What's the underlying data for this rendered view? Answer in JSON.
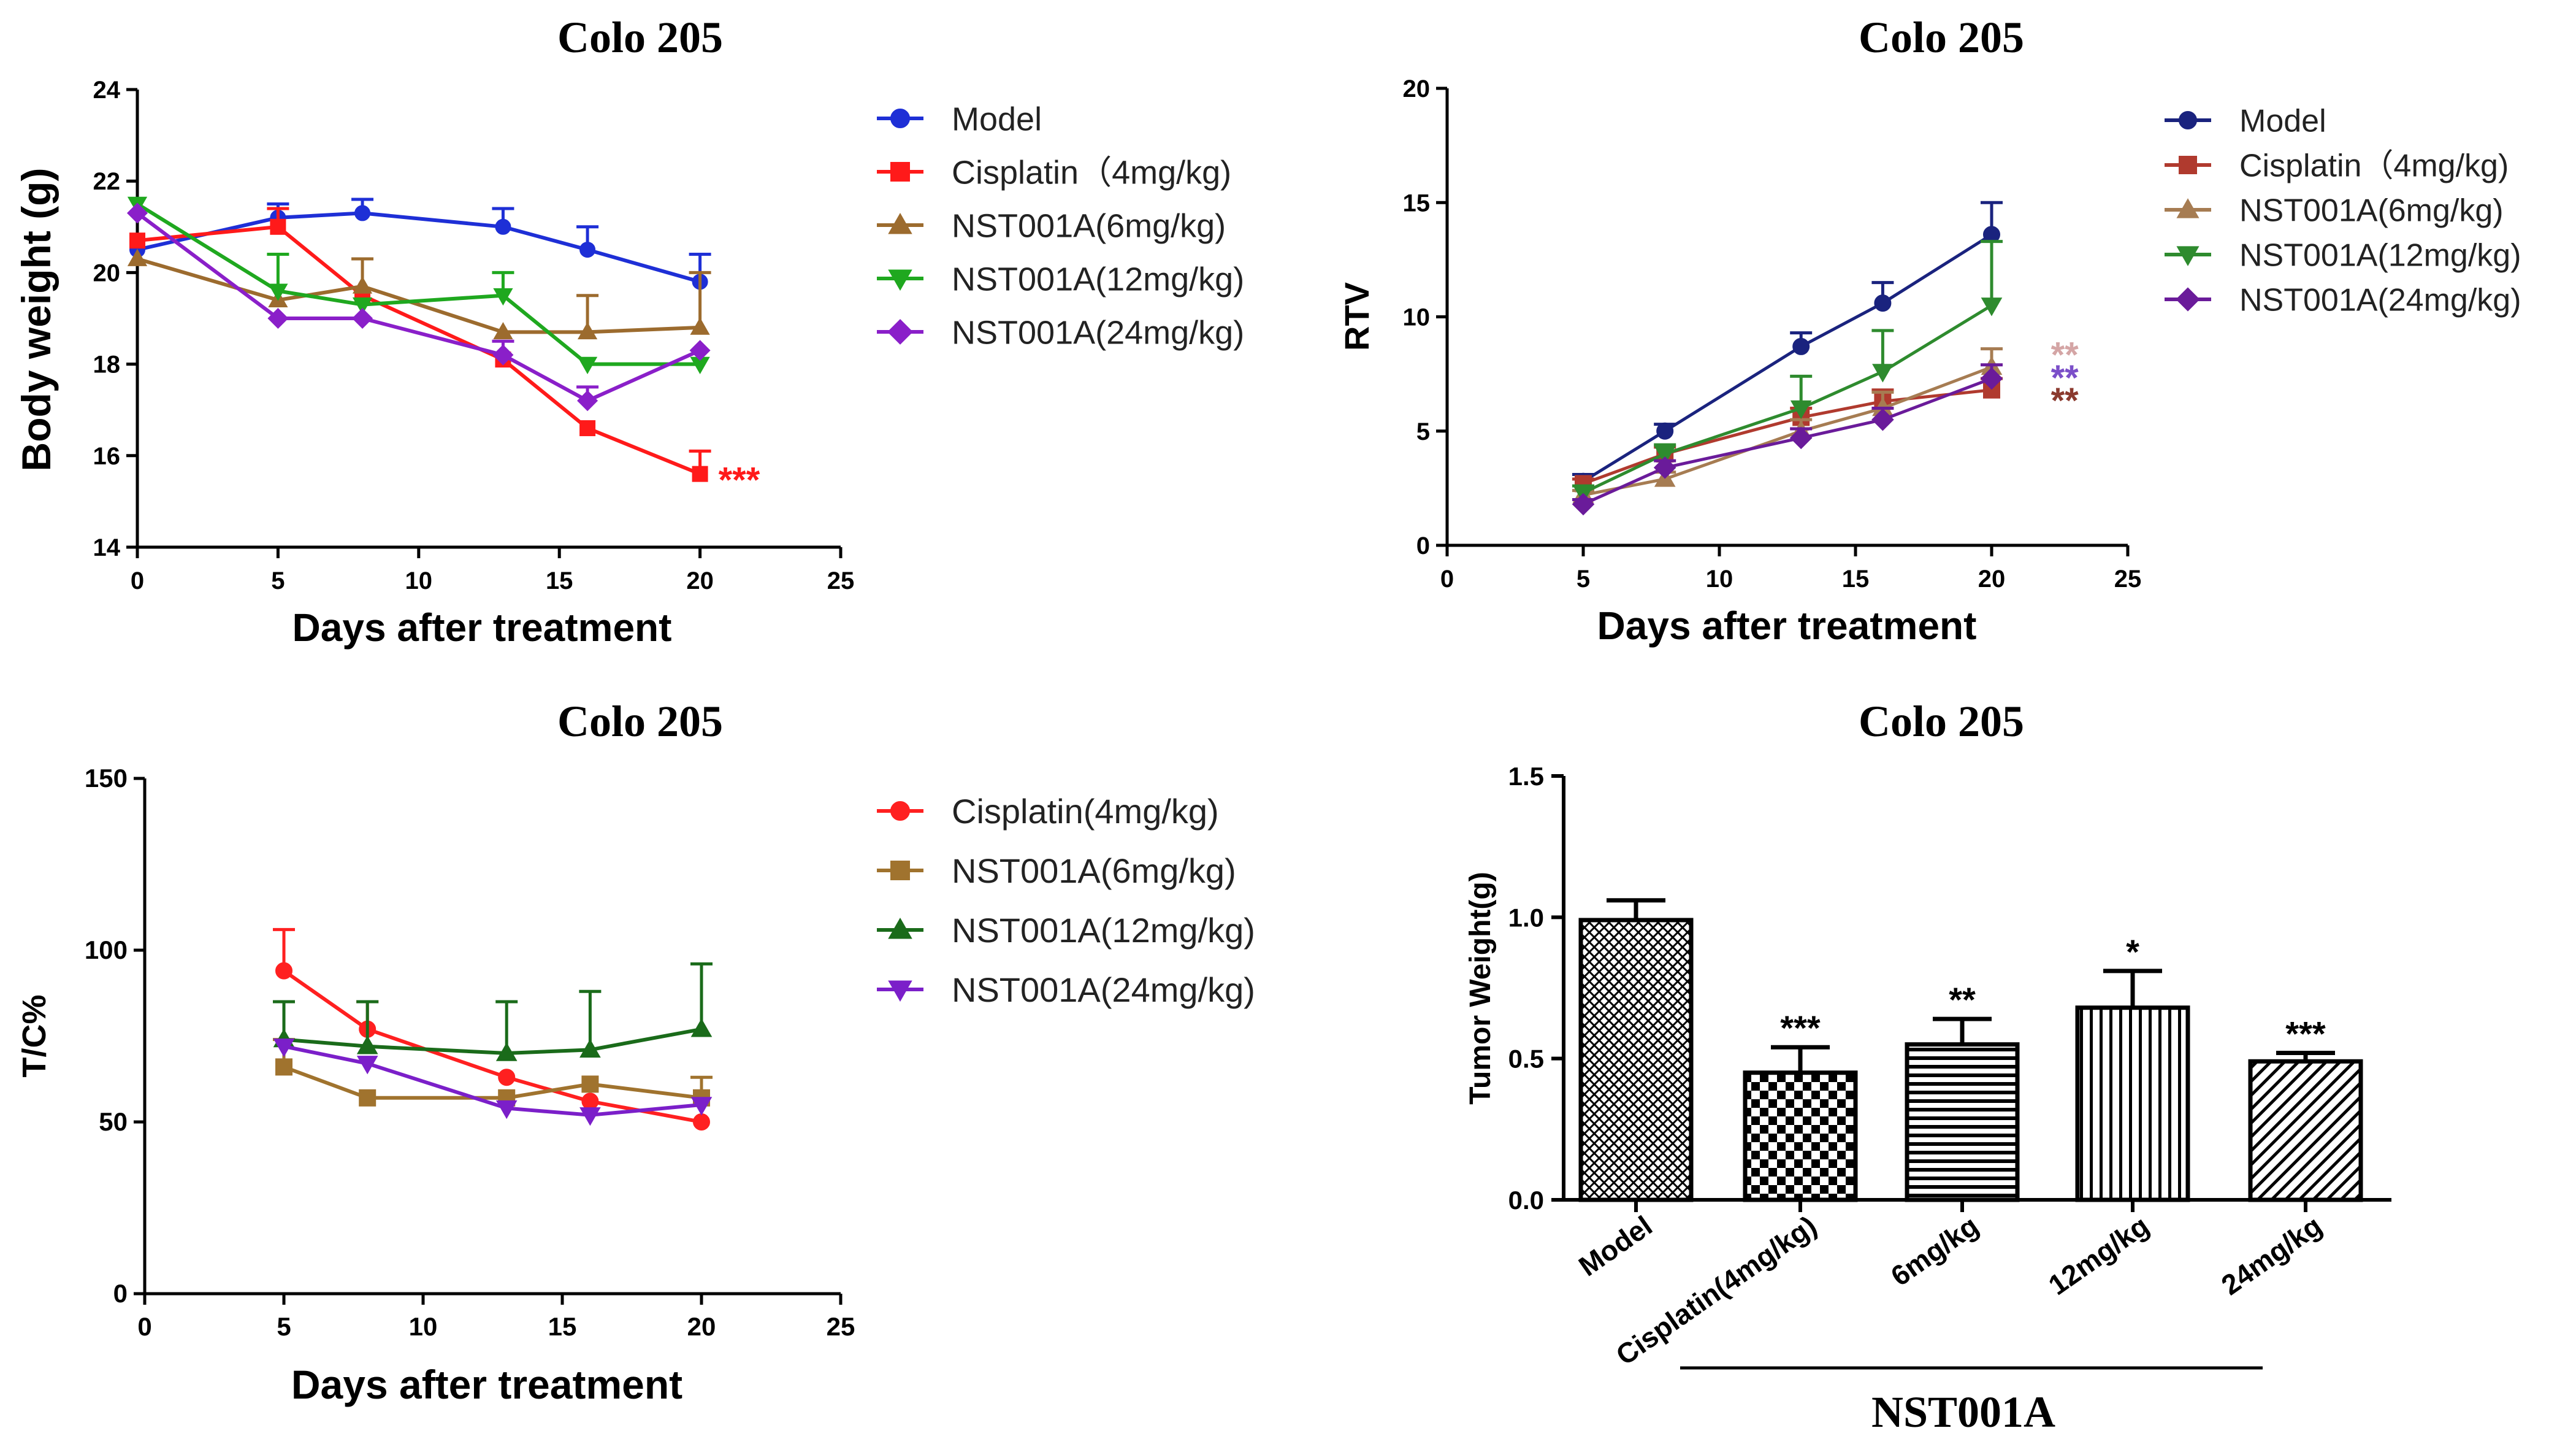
{
  "figure": {
    "panel_count": 4
  },
  "chart_data": [
    {
      "id": "bw",
      "type": "line",
      "title": "Colo 205",
      "xlabel": "Days after treatment",
      "ylabel": "Body weight (g)",
      "xlim": [
        0,
        25
      ],
      "ylim": [
        14,
        24
      ],
      "xticks": [
        0,
        5,
        10,
        15,
        20,
        25
      ],
      "yticks": [
        14,
        16,
        18,
        20,
        22,
        24
      ],
      "yticklabels": [
        "14",
        "16",
        "18",
        "20",
        "22",
        "24"
      ],
      "series": [
        {
          "name": "Model",
          "color": "#1e2fd6",
          "marker": "circle",
          "x": [
            0,
            5,
            8,
            13,
            16,
            20
          ],
          "y": [
            20.5,
            21.2,
            21.3,
            21.0,
            20.5,
            19.8
          ],
          "err": [
            0.0,
            0.3,
            0.3,
            0.4,
            0.5,
            0.6
          ]
        },
        {
          "name": "Cisplatin（4mg/kg)",
          "color": "#ff1a1a",
          "marker": "square",
          "x": [
            0,
            5,
            8,
            13,
            16,
            20
          ],
          "y": [
            20.7,
            21.0,
            19.5,
            18.1,
            16.6,
            15.6
          ],
          "err": [
            0.0,
            0.4,
            0.0,
            0.0,
            0.0,
            0.5
          ]
        },
        {
          "name": "NST001A(6mg/kg)",
          "color": "#9c6b2e",
          "marker": "triangle",
          "x": [
            0,
            5,
            8,
            13,
            16,
            20
          ],
          "y": [
            20.3,
            19.4,
            19.7,
            18.7,
            18.7,
            18.8
          ],
          "err": [
            0.0,
            0.0,
            0.6,
            0.0,
            0.8,
            1.2
          ]
        },
        {
          "name": "NST001A(12mg/kg)",
          "color": "#1fa81f",
          "marker": "triangle-down",
          "x": [
            0,
            5,
            8,
            13,
            16,
            20
          ],
          "y": [
            21.5,
            19.6,
            19.3,
            19.5,
            18.0,
            18.0
          ],
          "err": [
            0.0,
            0.8,
            0.0,
            0.5,
            0.0,
            0.0
          ]
        },
        {
          "name": "NST001A(24mg/kg)",
          "color": "#8a1fc9",
          "marker": "diamond",
          "x": [
            0,
            5,
            8,
            13,
            16,
            20
          ],
          "y": [
            21.3,
            19.0,
            19.0,
            18.2,
            17.2,
            18.3
          ],
          "err": [
            0.0,
            0.0,
            0.0,
            0.3,
            0.3,
            0.0
          ]
        }
      ],
      "annotations": [
        {
          "text": "***",
          "x": 20,
          "y": 15.6,
          "color": "#ff1a1a"
        }
      ]
    },
    {
      "id": "rtv",
      "type": "line",
      "title": "Colo 205",
      "xlabel": "Days after treatment",
      "ylabel": "RTV",
      "xlim": [
        0,
        25
      ],
      "ylim": [
        0,
        20
      ],
      "xticks": [
        0,
        5,
        10,
        15,
        20,
        25
      ],
      "yticks": [
        0,
        5,
        10,
        15,
        20
      ],
      "yticklabels": [
        "0",
        "5",
        "10",
        "15",
        "20"
      ],
      "series": [
        {
          "name": "Model",
          "color": "#1a237e",
          "marker": "circle",
          "x": [
            5,
            8,
            13,
            16,
            20
          ],
          "y": [
            2.8,
            5.0,
            8.7,
            10.6,
            13.6
          ],
          "err": [
            0.3,
            0.3,
            0.6,
            0.9,
            1.4
          ]
        },
        {
          "name": "Cisplatin（4mg/kg)",
          "color": "#b03a2e",
          "marker": "square",
          "x": [
            5,
            8,
            13,
            16,
            20
          ],
          "y": [
            2.7,
            4.0,
            5.6,
            6.3,
            6.8
          ],
          "err": [
            0.2,
            0.3,
            0.4,
            0.5,
            0.5
          ]
        },
        {
          "name": "NST001A(6mg/kg)",
          "color": "#a67c52",
          "marker": "triangle",
          "x": [
            5,
            8,
            13,
            16,
            20
          ],
          "y": [
            2.2,
            2.9,
            5.0,
            6.0,
            7.8
          ],
          "err": [
            0.2,
            0.3,
            0.5,
            0.7,
            0.8
          ]
        },
        {
          "name": "NST001A(12mg/kg)",
          "color": "#2e8b2e",
          "marker": "triangle-down",
          "x": [
            5,
            8,
            13,
            16,
            20
          ],
          "y": [
            2.3,
            4.0,
            6.0,
            7.6,
            10.5
          ],
          "err": [
            0.3,
            0.4,
            1.4,
            1.8,
            2.8
          ]
        },
        {
          "name": "NST001A(24mg/kg)",
          "color": "#6a1b9a",
          "marker": "diamond",
          "x": [
            5,
            8,
            13,
            16,
            20
          ],
          "y": [
            1.8,
            3.4,
            4.7,
            5.5,
            7.3
          ],
          "err": [
            0.2,
            0.3,
            0.4,
            0.5,
            0.6
          ]
        }
      ],
      "annotations": [
        {
          "text": "**",
          "x": 21.5,
          "y": 8.6,
          "color": "#d4a5a5"
        },
        {
          "text": "**",
          "x": 21.5,
          "y": 7.6,
          "color": "#7b4fc9"
        },
        {
          "text": "**",
          "x": 21.5,
          "y": 6.6,
          "color": "#8b3a2e"
        }
      ]
    },
    {
      "id": "tc",
      "type": "line",
      "title": "Colo 205",
      "xlabel": "Days after treatment",
      "ylabel": "T/C%",
      "xlim": [
        0,
        25
      ],
      "ylim": [
        0,
        150
      ],
      "xticks": [
        0,
        5,
        10,
        15,
        20,
        25
      ],
      "yticks": [
        0,
        50,
        100,
        150
      ],
      "yticklabels": [
        "0",
        "50",
        "100",
        "150"
      ],
      "series": [
        {
          "name": "Cisplatin(4mg/kg)",
          "color": "#ff2020",
          "marker": "circle",
          "x": [
            5,
            8,
            13,
            16,
            20
          ],
          "y": [
            94,
            77,
            63,
            56,
            50
          ],
          "err": [
            12,
            8,
            0,
            0,
            0
          ]
        },
        {
          "name": "NST001A(6mg/kg)",
          "color": "#a0732e",
          "marker": "square",
          "x": [
            5,
            8,
            13,
            16,
            20
          ],
          "y": [
            66,
            57,
            57,
            61,
            57
          ],
          "err": [
            8,
            0,
            0,
            0,
            6
          ]
        },
        {
          "name": "NST001A(12mg/kg)",
          "color": "#1a6b1a",
          "marker": "triangle",
          "x": [
            5,
            8,
            13,
            16,
            20
          ],
          "y": [
            74,
            72,
            70,
            71,
            77
          ],
          "err": [
            11,
            13,
            15,
            17,
            19
          ]
        },
        {
          "name": "NST001A(24mg/kg)",
          "color": "#7b1fc9",
          "marker": "triangle-down",
          "x": [
            5,
            8,
            13,
            16,
            20
          ],
          "y": [
            72,
            67,
            54,
            52,
            55
          ],
          "err": [
            0,
            0,
            0,
            0,
            0
          ]
        }
      ]
    },
    {
      "id": "tw",
      "type": "bar",
      "title": "Colo 205",
      "ylabel": "Tumor Weight(g)",
      "ylim": [
        0,
        1.5
      ],
      "yticks": [
        0,
        0.5,
        1.0,
        1.5
      ],
      "yticklabels": [
        "0.0",
        "0.5",
        "1.0",
        "1.5"
      ],
      "categories": [
        "Model",
        "Cisplatin(4mg/kg)",
        "6mg/kg",
        "12mg/kg",
        "24mg/kg"
      ],
      "values": [
        0.99,
        0.45,
        0.55,
        0.68,
        0.49
      ],
      "errors": [
        0.07,
        0.09,
        0.09,
        0.13,
        0.03
      ],
      "significance": [
        "",
        "***",
        "**",
        "*",
        "***"
      ],
      "patterns": [
        "crosshatch",
        "checker",
        "horizontal",
        "vertical",
        "diagonal"
      ],
      "group_label": "NST001A"
    }
  ]
}
